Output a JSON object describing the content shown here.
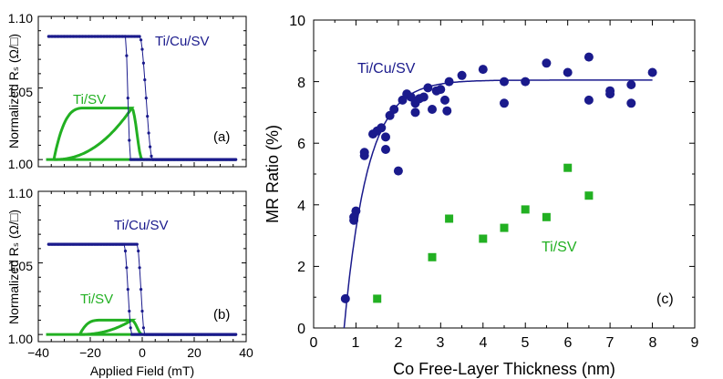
{
  "chart_data": [
    {
      "panel": "(a)",
      "type": "scatter",
      "title": "",
      "xlabel": "",
      "ylabel": "Normalized Rₛ (Ω/□)",
      "xlim": [
        -40,
        40
      ],
      "ylim": [
        0.995,
        1.1
      ],
      "yticks": [
        "1.00",
        "1.05",
        "1.10"
      ],
      "series": [
        {
          "name": "Ti/Cu/SV",
          "color": "#1a1a8c",
          "plateau": 1.086,
          "base": 1.0,
          "sweep_down": {
            "switch_start": -6.5,
            "switch_end": -4.5
          },
          "sweep_up": {
            "switch_start": -1.0,
            "switch_end": 4.0
          }
        },
        {
          "name": "Ti/SV",
          "color": "#22b022",
          "base": 1.0,
          "peak": 1.036,
          "loop": {
            "x_start": -34,
            "x_end": -4,
            "upper_rise_end": -22
          }
        }
      ]
    },
    {
      "panel": "(b)",
      "type": "scatter",
      "title": "",
      "xlabel": "Applied Field (mT)",
      "ylabel": "Normalized Rₛ (Ω/□)",
      "xlim": [
        -40,
        40
      ],
      "ylim": [
        0.995,
        1.1
      ],
      "xticks": [
        "−40",
        "−20",
        "0",
        "20",
        "40"
      ],
      "yticks": [
        "1.00",
        "1.05",
        "1.10"
      ],
      "series": [
        {
          "name": "Ti/Cu/SV",
          "color": "#1a1a8c",
          "plateau": 1.063,
          "base": 1.0,
          "sweep_down": {
            "switch_start": -7.0,
            "switch_end": -4.0
          },
          "sweep_up": {
            "switch_start": -2.0,
            "switch_end": 1.0
          }
        },
        {
          "name": "Ti/SV",
          "color": "#22b022",
          "base": 1.0,
          "peak": 1.01,
          "loop": {
            "x_start": -24,
            "x_end": -4,
            "upper_rise_end": -16
          }
        }
      ]
    },
    {
      "panel": "(c)",
      "type": "scatter",
      "title": "",
      "xlabel": "Co Free-Layer Thickness (nm)",
      "ylabel": "MR Ratio (%)",
      "xlim": [
        0,
        9
      ],
      "ylim": [
        0,
        10
      ],
      "xticks": [
        "0",
        "1",
        "2",
        "3",
        "4",
        "5",
        "6",
        "7",
        "8",
        "9"
      ],
      "yticks": [
        "0",
        "2",
        "4",
        "6",
        "8",
        "10"
      ],
      "series": [
        {
          "name": "Ti/Cu/SV",
          "color": "#1a1a8c",
          "marker": "circle",
          "points": [
            [
              0.75,
              0.95
            ],
            [
              0.95,
              3.5
            ],
            [
              0.95,
              3.6
            ],
            [
              1.0,
              3.8
            ],
            [
              1.2,
              5.6
            ],
            [
              1.2,
              5.7
            ],
            [
              1.4,
              6.3
            ],
            [
              1.5,
              6.4
            ],
            [
              1.6,
              6.5
            ],
            [
              1.7,
              6.2
            ],
            [
              1.7,
              5.8
            ],
            [
              1.8,
              6.9
            ],
            [
              1.9,
              7.1
            ],
            [
              2.0,
              5.1
            ],
            [
              2.1,
              7.4
            ],
            [
              2.2,
              7.6
            ],
            [
              2.3,
              7.5
            ],
            [
              2.4,
              7.3
            ],
            [
              2.4,
              7.0
            ],
            [
              2.5,
              7.45
            ],
            [
              2.6,
              7.5
            ],
            [
              2.7,
              7.8
            ],
            [
              2.8,
              7.1
            ],
            [
              2.9,
              7.7
            ],
            [
              3.0,
              7.75
            ],
            [
              3.1,
              7.4
            ],
            [
              3.15,
              7.05
            ],
            [
              3.2,
              8.0
            ],
            [
              3.5,
              8.2
            ],
            [
              4.0,
              8.4
            ],
            [
              4.5,
              8.0
            ],
            [
              4.5,
              7.3
            ],
            [
              5.0,
              8.0
            ],
            [
              5.5,
              8.6
            ],
            [
              6.0,
              8.3
            ],
            [
              6.5,
              8.8
            ],
            [
              6.5,
              7.4
            ],
            [
              7.0,
              7.6
            ],
            [
              7.0,
              7.7
            ],
            [
              7.5,
              7.9
            ],
            [
              7.5,
              7.3
            ],
            [
              8.0,
              8.3
            ]
          ],
          "fit": {
            "type": "saturating",
            "mr_max": 8.05,
            "t0": 0.72,
            "tau": 0.55,
            "x_range": [
              0.72,
              8.0
            ]
          }
        },
        {
          "name": "Ti/SV",
          "color": "#22b022",
          "marker": "square",
          "points": [
            [
              1.5,
              0.95
            ],
            [
              2.8,
              2.3
            ],
            [
              3.2,
              3.55
            ],
            [
              4.0,
              2.9
            ],
            [
              4.5,
              3.25
            ],
            [
              5.0,
              3.85
            ],
            [
              5.5,
              3.6
            ],
            [
              6.0,
              5.2
            ],
            [
              6.5,
              4.3
            ]
          ]
        }
      ]
    }
  ]
}
